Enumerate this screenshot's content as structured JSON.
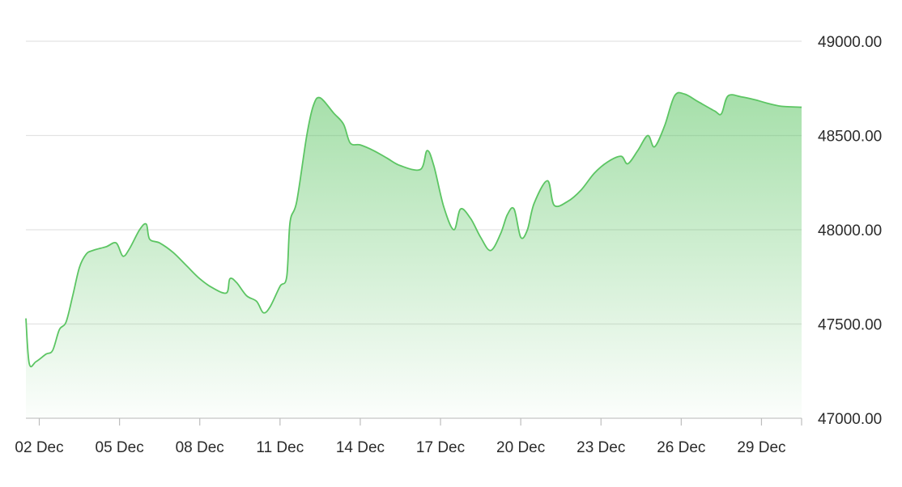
{
  "chart_data": {
    "type": "area",
    "title": "",
    "xlabel": "",
    "ylabel": "",
    "ylim": [
      47000,
      49000
    ],
    "grid": true,
    "y_axis_side": "right",
    "line_color": "#5cc563",
    "fill_color": "#5cc563",
    "y_ticks": [
      "47000.00",
      "47500.00",
      "48000.00",
      "48500.00",
      "49000.00"
    ],
    "x_tick_labels": [
      "02 Dec",
      "05 Dec",
      "08 Dec",
      "11 Dec",
      "14 Dec",
      "17 Dec",
      "20 Dec",
      "23 Dec",
      "26 Dec",
      "29 Dec"
    ],
    "x_start": "2024-12-01T12:00",
    "x_end": "2024-12-30T12:00",
    "series": [
      {
        "values": [
          [
            "2024-12-01T12:00",
            47530
          ],
          [
            "2024-12-01T15:00",
            47290
          ],
          [
            "2024-12-01T21:00",
            47300
          ],
          [
            "2024-12-02T06:00",
            47340
          ],
          [
            "2024-12-02T12:00",
            47360
          ],
          [
            "2024-12-02T18:00",
            47470
          ],
          [
            "2024-12-03T00:00",
            47510
          ],
          [
            "2024-12-03T06:00",
            47650
          ],
          [
            "2024-12-03T12:00",
            47800
          ],
          [
            "2024-12-03T18:00",
            47870
          ],
          [
            "2024-12-04T00:00",
            47890
          ],
          [
            "2024-12-04T12:00",
            47910
          ],
          [
            "2024-12-04T21:00",
            47930
          ],
          [
            "2024-12-05T03:00",
            47860
          ],
          [
            "2024-12-05T09:00",
            47900
          ],
          [
            "2024-12-05T18:00",
            48000
          ],
          [
            "2024-12-06T00:00",
            48030
          ],
          [
            "2024-12-06T03:00",
            47950
          ],
          [
            "2024-12-06T12:00",
            47930
          ],
          [
            "2024-12-07T00:00",
            47880
          ],
          [
            "2024-12-07T12:00",
            47810
          ],
          [
            "2024-12-08T00:00",
            47740
          ],
          [
            "2024-12-08T12:00",
            47690
          ],
          [
            "2024-12-09T00:00",
            47665
          ],
          [
            "2024-12-09T03:00",
            47740
          ],
          [
            "2024-12-09T09:00",
            47720
          ],
          [
            "2024-12-09T18:00",
            47650
          ],
          [
            "2024-12-10T03:00",
            47620
          ],
          [
            "2024-12-10T09:00",
            47560
          ],
          [
            "2024-12-10T15:00",
            47590
          ],
          [
            "2024-12-11T00:00",
            47700
          ],
          [
            "2024-12-11T06:00",
            47750
          ],
          [
            "2024-12-11T09:00",
            48040
          ],
          [
            "2024-12-11T15:00",
            48150
          ],
          [
            "2024-12-12T00:00",
            48500
          ],
          [
            "2024-12-12T06:00",
            48660
          ],
          [
            "2024-12-12T12:00",
            48700
          ],
          [
            "2024-12-13T00:00",
            48620
          ],
          [
            "2024-12-13T09:00",
            48560
          ],
          [
            "2024-12-13T15:00",
            48460
          ],
          [
            "2024-12-14T00:00",
            48450
          ],
          [
            "2024-12-14T12:00",
            48420
          ],
          [
            "2024-12-15T00:00",
            48380
          ],
          [
            "2024-12-15T12:00",
            48340
          ],
          [
            "2024-12-16T06:00",
            48320
          ],
          [
            "2024-12-16T12:00",
            48420
          ],
          [
            "2024-12-16T18:00",
            48340
          ],
          [
            "2024-12-17T03:00",
            48120
          ],
          [
            "2024-12-17T12:00",
            48000
          ],
          [
            "2024-12-17T18:00",
            48110
          ],
          [
            "2024-12-18T03:00",
            48060
          ],
          [
            "2024-12-18T12:00",
            47960
          ],
          [
            "2024-12-18T21:00",
            47890
          ],
          [
            "2024-12-19T06:00",
            47980
          ],
          [
            "2024-12-19T12:00",
            48080
          ],
          [
            "2024-12-19T18:00",
            48110
          ],
          [
            "2024-12-20T00:00",
            47960
          ],
          [
            "2024-12-20T06:00",
            48000
          ],
          [
            "2024-12-20T12:00",
            48140
          ],
          [
            "2024-12-21T00:00",
            48260
          ],
          [
            "2024-12-21T06:00",
            48130
          ],
          [
            "2024-12-21T18:00",
            48150
          ],
          [
            "2024-12-22T06:00",
            48210
          ],
          [
            "2024-12-22T18:00",
            48300
          ],
          [
            "2024-12-23T06:00",
            48360
          ],
          [
            "2024-12-23T18:00",
            48390
          ],
          [
            "2024-12-24T00:00",
            48350
          ],
          [
            "2024-12-24T09:00",
            48420
          ],
          [
            "2024-12-24T18:00",
            48500
          ],
          [
            "2024-12-25T00:00",
            48440
          ],
          [
            "2024-12-25T09:00",
            48550
          ],
          [
            "2024-12-25T18:00",
            48710
          ],
          [
            "2024-12-26T03:00",
            48720
          ],
          [
            "2024-12-26T15:00",
            48680
          ],
          [
            "2024-12-27T06:00",
            48630
          ],
          [
            "2024-12-27T12:00",
            48615
          ],
          [
            "2024-12-27T18:00",
            48710
          ],
          [
            "2024-12-28T06:00",
            48705
          ],
          [
            "2024-12-28T18:00",
            48690
          ],
          [
            "2024-12-29T06:00",
            48670
          ],
          [
            "2024-12-29T18:00",
            48655
          ],
          [
            "2024-12-30T12:00",
            48650
          ]
        ]
      }
    ]
  }
}
